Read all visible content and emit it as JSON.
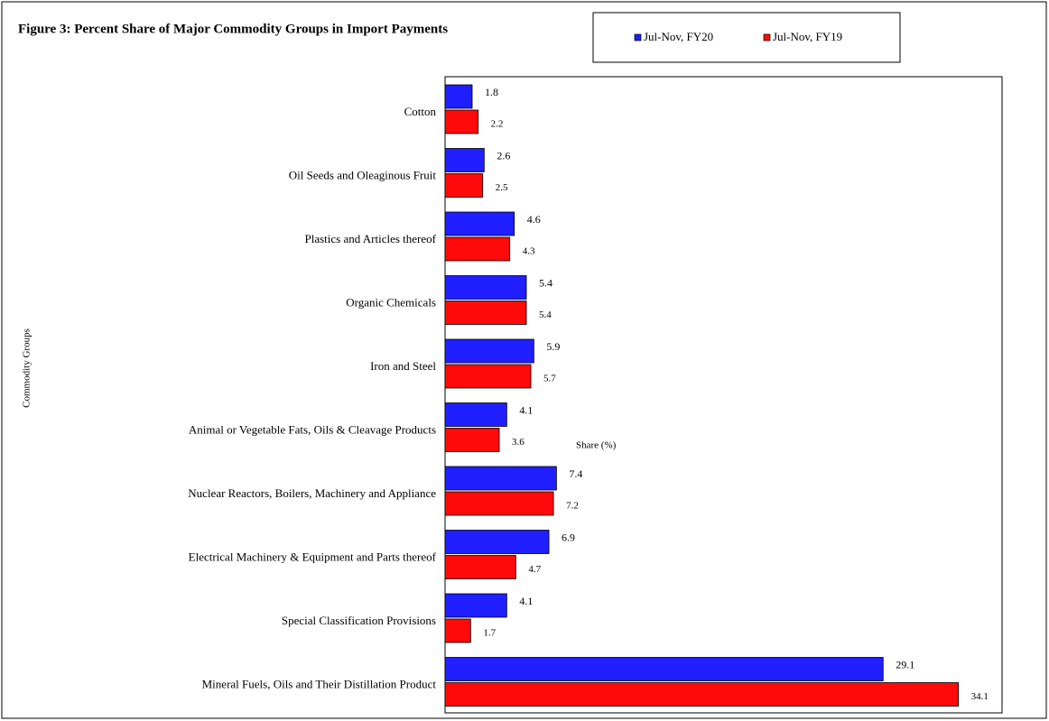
{
  "chart_data": {
    "type": "hbar",
    "title": "Figure 3: Percent Share of Major Commodity Groups in Import Payments",
    "x_label": "Share (%)",
    "y_label": "Commodity Groups",
    "categories": [
      "Cotton",
      "Oil Seeds and Oleaginous Fruit",
      "Plastics and Articles thereof",
      "Organic Chemicals",
      "Iron and Steel",
      "Animal or Vegetable Fats, Oils & Cleavage Products",
      "Nuclear Reactors, Boilers, Machinery and Appliance",
      "Electrical Machinery & Equipment and Parts thereof",
      "Special Classification Provisions",
      "Mineral Fuels, Oils and Their Distillation Product"
    ],
    "series": [
      {
        "name": "Jul-Nov, FY20",
        "color": "#1f1fff",
        "values": [
          1.8,
          2.6,
          4.6,
          5.4,
          5.9,
          4.1,
          7.4,
          6.9,
          4.1,
          29.1
        ]
      },
      {
        "name": "Jul-Nov, FY19",
        "color": "#ff0a0a",
        "values": [
          2.2,
          2.5,
          4.3,
          5.4,
          5.7,
          3.6,
          7.2,
          4.7,
          1.7,
          34.1
        ]
      }
    ],
    "xlim": [
      0,
      37
    ],
    "grid": false
  }
}
